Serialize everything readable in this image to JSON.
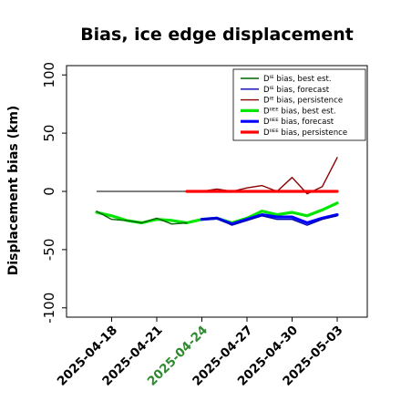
{
  "chart_data": {
    "type": "line",
    "title": "Bias, ice edge displacement",
    "xlabel": "",
    "ylabel": "Displacement bias (km)",
    "ylim": [
      -108,
      108
    ],
    "yticks": [
      100,
      50,
      0,
      -50,
      -100
    ],
    "xlim": [
      "2025-04-15",
      "2025-05-05"
    ],
    "xticks": [
      "2025-04-18",
      "2025-04-21",
      "2025-04-24",
      "2025-04-27",
      "2025-04-30",
      "2025-05-03"
    ],
    "xtick_colors": [
      "#000000",
      "#000000",
      "#2e8b2e",
      "#000000",
      "#000000",
      "#000000"
    ],
    "grid": false,
    "legend_position": "top-right",
    "zero_line": {
      "from": "2025-04-17",
      "to": "2025-05-03",
      "y": 0,
      "color": "#555555"
    },
    "series": [
      {
        "name": "Dᴵᴱ bias, best est.",
        "color": "#006400",
        "width": 1.4,
        "x": [
          "2025-04-17",
          "2025-04-18",
          "2025-04-19",
          "2025-04-20",
          "2025-04-21",
          "2025-04-22",
          "2025-04-23"
        ],
        "values": [
          -17,
          -24,
          -25,
          -27,
          -23,
          -28,
          -27
        ]
      },
      {
        "name": "Dᴵᴱ bias, forecast",
        "color": "#0000b3",
        "width": 1.4,
        "x": [
          "2025-04-24",
          "2025-04-25",
          "2025-04-26",
          "2025-04-27",
          "2025-04-28",
          "2025-04-29",
          "2025-04-30",
          "2025-05-01",
          "2025-05-02",
          "2025-05-03"
        ],
        "values": [
          -24,
          -23,
          -29,
          -25,
          -21,
          -24,
          -24,
          -29,
          -24,
          -21
        ]
      },
      {
        "name": "Dᴵᴱ bias, persistence",
        "color": "#8b0000",
        "width": 1.4,
        "x": [
          "2025-04-23",
          "2025-04-24",
          "2025-04-25",
          "2025-04-26",
          "2025-04-27",
          "2025-04-28",
          "2025-04-29",
          "2025-04-30",
          "2025-05-01",
          "2025-05-02",
          "2025-05-03"
        ],
        "values": [
          0,
          0,
          2,
          0,
          3,
          5,
          0,
          12,
          -2,
          4,
          29
        ]
      },
      {
        "name": "Dᴵᴵᴱᴱ bias, best est.",
        "color": "#00e600",
        "width": 3.2,
        "x": [
          "2025-04-17",
          "2025-04-18",
          "2025-04-19",
          "2025-04-20",
          "2025-04-21",
          "2025-04-22",
          "2025-04-23",
          "2025-04-24",
          "2025-04-25",
          "2025-04-26",
          "2025-04-27",
          "2025-04-28",
          "2025-04-29",
          "2025-04-30",
          "2025-05-01",
          "2025-05-02",
          "2025-05-03"
        ],
        "values": [
          -18,
          -21,
          -25,
          -27,
          -24,
          -25,
          -27,
          -24,
          -23,
          -27,
          -23,
          -17,
          -20,
          -18,
          -21,
          -16,
          -10
        ]
      },
      {
        "name": "Dᴵᴵᴱᴱ bias, forecast",
        "color": "#0000ff",
        "width": 3.2,
        "x": [
          "2025-04-24",
          "2025-04-25",
          "2025-04-26",
          "2025-04-27",
          "2025-04-28",
          "2025-04-29",
          "2025-04-30",
          "2025-05-01",
          "2025-05-02",
          "2025-05-03"
        ],
        "values": [
          -24,
          -23,
          -28,
          -24,
          -20,
          -22,
          -22,
          -27,
          -23,
          -20
        ]
      },
      {
        "name": "Dᴵᴵᴱᴱ bias, persistence",
        "color": "#ff0000",
        "width": 3.2,
        "x": [
          "2025-04-23",
          "2025-04-24",
          "2025-04-25",
          "2025-04-26",
          "2025-04-27",
          "2025-04-28",
          "2025-04-29",
          "2025-04-30",
          "2025-05-01",
          "2025-05-02",
          "2025-05-03"
        ],
        "values": [
          0,
          0,
          0,
          0,
          0,
          0,
          0,
          0,
          0,
          0,
          0
        ]
      }
    ]
  }
}
